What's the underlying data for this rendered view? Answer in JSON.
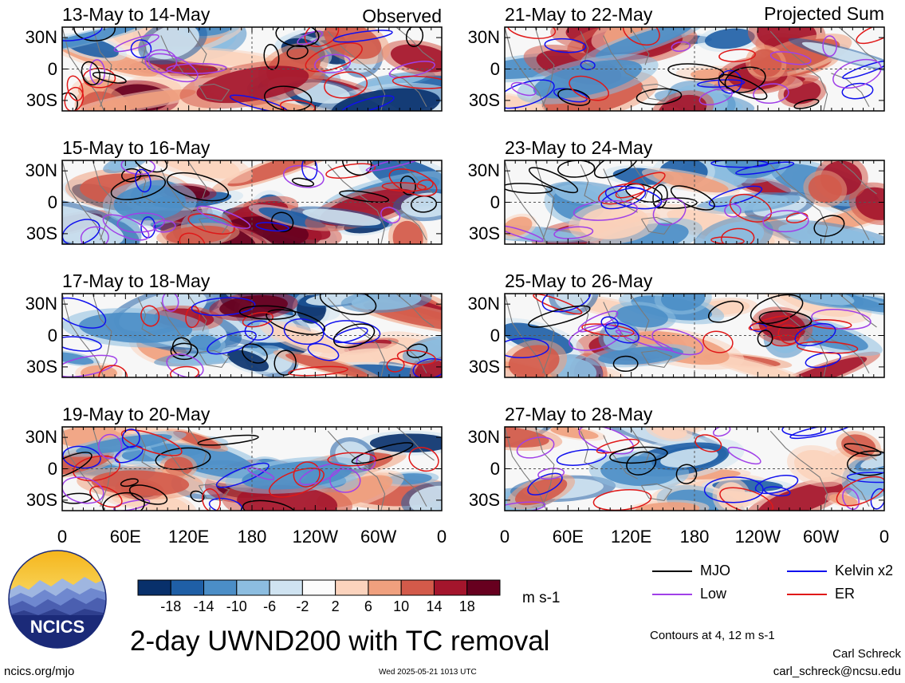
{
  "chart_data": {
    "type": "heatmap",
    "title": "2-day UWND200 with TC removal",
    "panel_groups": {
      "left": "Observed",
      "right": "Projected Sum"
    },
    "panels": [
      {
        "title": "13-May to 14-May",
        "group": "Observed"
      },
      {
        "title": "15-May to 16-May",
        "group": "Observed"
      },
      {
        "title": "17-May to 18-May",
        "group": "Observed"
      },
      {
        "title": "19-May to 20-May",
        "group": "Observed"
      },
      {
        "title": "21-May to 22-May",
        "group": "Projected Sum"
      },
      {
        "title": "23-May to 24-May",
        "group": "Projected Sum"
      },
      {
        "title": "25-May to 26-May",
        "group": "Projected Sum"
      },
      {
        "title": "27-May to 28-May",
        "group": "Projected Sum"
      }
    ],
    "y_ticks": [
      "30N",
      "0",
      "30S"
    ],
    "y_values": [
      30,
      0,
      -30
    ],
    "ylim": [
      -40,
      40
    ],
    "x_ticks": [
      "0",
      "60E",
      "120E",
      "180",
      "120W",
      "60W",
      "0"
    ],
    "x_values": [
      0,
      60,
      120,
      180,
      240,
      300,
      360
    ],
    "xlim": [
      0,
      360
    ],
    "colorbar": {
      "labels": [
        "-18",
        "-14",
        "-10",
        "-6",
        "-2",
        "2",
        "6",
        "10",
        "14",
        "18"
      ],
      "colors": [
        "#08306b",
        "#1f5fa6",
        "#4b8ec7",
        "#8cbde0",
        "#cfe3f1",
        "#fbfbfb",
        "#fbd3bd",
        "#f0a07e",
        "#d35a4a",
        "#a4152c",
        "#67001f"
      ],
      "units": "m s-1"
    },
    "legend": [
      {
        "label": "MJO",
        "color": "#000000"
      },
      {
        "label": "Kelvin x2",
        "color": "#1010ee"
      },
      {
        "label": "Low",
        "color": "#a040e8"
      },
      {
        "label": "ER",
        "color": "#e01818"
      }
    ],
    "contour_note": "Contours at 4, 12 m s-1"
  },
  "footer": {
    "logo_text": "NCICS",
    "site": "ncics.org/mjo",
    "timestamp": "Wed 2025-05-21 1013 UTC",
    "author": "Carl Schreck",
    "email": "carl_schreck@ncsu.edu"
  }
}
